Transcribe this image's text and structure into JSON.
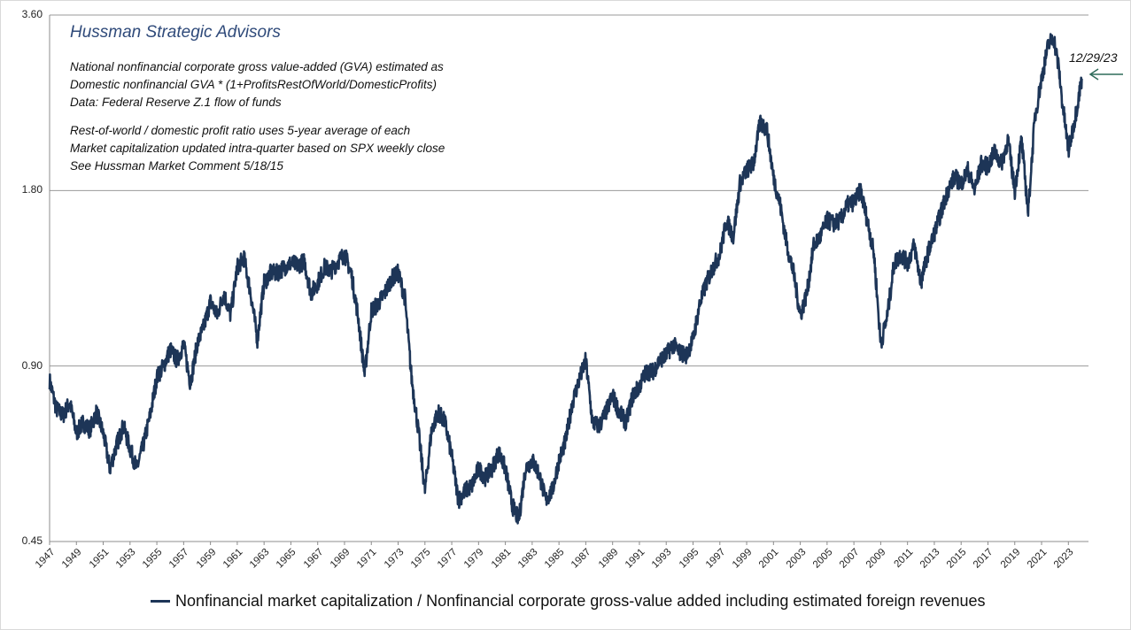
{
  "chart_data": {
    "type": "line",
    "title": "Hussman Strategic Advisors",
    "notes": [
      "National nonfinancial corporate gross value-added (GVA) estimated as",
      "Domestic nonfinancial GVA * (1+ProfitsRestOfWorld/DomesticProfits)",
      "Data: Federal Reserve Z.1 flow of funds",
      "Rest-of-world / domestic profit ratio uses 5-year average of each",
      "Market capitalization updated intra-quarter based on SPX weekly close",
      "See Hussman Market Comment 5/18/15"
    ],
    "end_label": "12/29/23",
    "y_scale": "log",
    "ylim": [
      0.45,
      3.6
    ],
    "y_ticks": [
      "3.60",
      "1.80",
      "0.90",
      "0.45"
    ],
    "y_tick_values": [
      3.6,
      1.8,
      0.9,
      0.45
    ],
    "xlim": [
      1947,
      2024.5
    ],
    "x_ticks": [
      "1947",
      "1949",
      "1951",
      "1953",
      "1955",
      "1957",
      "1959",
      "1961",
      "1963",
      "1965",
      "1967",
      "1969",
      "1971",
      "1973",
      "1975",
      "1977",
      "1979",
      "1981",
      "1983",
      "1985",
      "1987",
      "1989",
      "1991",
      "1993",
      "1995",
      "1997",
      "1999",
      "2001",
      "2003",
      "2005",
      "2007",
      "2009",
      "2011",
      "2013",
      "2015",
      "2017",
      "2019",
      "2021",
      "2023"
    ],
    "grid": "horizontal",
    "legend_position": "bottom",
    "series": [
      {
        "name": "Nonfinancial market capitalization / Nonfinancial corporate gross-value added including estimated foreign revenues",
        "color": "#1d3557",
        "x": [
          1947.0,
          1947.5,
          1948.0,
          1948.5,
          1949.0,
          1949.5,
          1950.0,
          1950.5,
          1951.0,
          1951.5,
          1952.0,
          1952.5,
          1953.0,
          1953.5,
          1954.0,
          1954.5,
          1955.0,
          1955.5,
          1956.0,
          1956.5,
          1957.0,
          1957.5,
          1958.0,
          1958.5,
          1959.0,
          1959.5,
          1960.0,
          1960.5,
          1961.0,
          1961.5,
          1962.0,
          1962.5,
          1963.0,
          1963.5,
          1964.0,
          1964.5,
          1965.0,
          1965.5,
          1966.0,
          1966.5,
          1967.0,
          1967.5,
          1968.0,
          1968.5,
          1969.0,
          1969.5,
          1970.0,
          1970.5,
          1971.0,
          1971.5,
          1972.0,
          1972.5,
          1973.0,
          1973.5,
          1974.0,
          1974.5,
          1975.0,
          1975.5,
          1976.0,
          1976.5,
          1977.0,
          1977.5,
          1978.0,
          1978.5,
          1979.0,
          1979.5,
          1980.0,
          1980.5,
          1981.0,
          1981.5,
          1982.0,
          1982.5,
          1983.0,
          1983.5,
          1984.0,
          1984.5,
          1985.0,
          1985.5,
          1986.0,
          1986.5,
          1987.0,
          1987.5,
          1988.0,
          1988.5,
          1989.0,
          1989.5,
          1990.0,
          1990.5,
          1991.0,
          1991.5,
          1992.0,
          1992.5,
          1993.0,
          1993.5,
          1994.0,
          1994.5,
          1995.0,
          1995.5,
          1996.0,
          1996.5,
          1997.0,
          1997.5,
          1998.0,
          1998.5,
          1999.0,
          1999.5,
          2000.0,
          2000.5,
          2001.0,
          2001.5,
          2002.0,
          2002.5,
          2003.0,
          2003.5,
          2004.0,
          2004.5,
          2005.0,
          2005.5,
          2006.0,
          2006.5,
          2007.0,
          2007.5,
          2008.0,
          2008.5,
          2009.0,
          2009.5,
          2010.0,
          2010.5,
          2011.0,
          2011.5,
          2012.0,
          2012.5,
          2013.0,
          2013.5,
          2014.0,
          2014.5,
          2015.0,
          2015.5,
          2016.0,
          2016.5,
          2017.0,
          2017.5,
          2018.0,
          2018.5,
          2019.0,
          2019.5,
          2020.0,
          2020.2,
          2020.5,
          2021.0,
          2021.5,
          2021.9,
          2022.3,
          2022.5,
          2022.8,
          2023.0,
          2023.5,
          2024.0
        ],
        "values": [
          0.85,
          0.76,
          0.74,
          0.78,
          0.69,
          0.72,
          0.7,
          0.75,
          0.69,
          0.6,
          0.66,
          0.71,
          0.65,
          0.6,
          0.66,
          0.74,
          0.86,
          0.9,
          0.96,
          0.92,
          0.98,
          0.84,
          0.98,
          1.05,
          1.16,
          1.1,
          1.2,
          1.1,
          1.33,
          1.38,
          1.2,
          1.0,
          1.25,
          1.3,
          1.3,
          1.33,
          1.35,
          1.34,
          1.36,
          1.2,
          1.25,
          1.33,
          1.31,
          1.36,
          1.4,
          1.3,
          1.1,
          0.87,
          1.12,
          1.15,
          1.2,
          1.27,
          1.3,
          1.18,
          0.86,
          0.7,
          0.55,
          0.7,
          0.75,
          0.72,
          0.63,
          0.53,
          0.55,
          0.56,
          0.6,
          0.58,
          0.6,
          0.64,
          0.6,
          0.52,
          0.49,
          0.6,
          0.62,
          0.59,
          0.53,
          0.55,
          0.62,
          0.67,
          0.78,
          0.85,
          0.92,
          0.72,
          0.71,
          0.75,
          0.8,
          0.75,
          0.72,
          0.8,
          0.83,
          0.88,
          0.88,
          0.92,
          0.94,
          0.98,
          0.95,
          0.94,
          1.0,
          1.15,
          1.25,
          1.33,
          1.4,
          1.6,
          1.5,
          1.85,
          1.95,
          2.0,
          2.35,
          2.3,
          1.9,
          1.7,
          1.45,
          1.3,
          1.1,
          1.2,
          1.45,
          1.5,
          1.6,
          1.58,
          1.6,
          1.7,
          1.72,
          1.8,
          1.6,
          1.4,
          0.98,
          1.1,
          1.35,
          1.4,
          1.35,
          1.45,
          1.25,
          1.4,
          1.52,
          1.65,
          1.8,
          1.9,
          1.85,
          1.95,
          1.8,
          2.0,
          1.98,
          2.1,
          2.0,
          2.2,
          1.8,
          2.2,
          1.65,
          1.93,
          2.4,
          2.8,
          3.2,
          3.3,
          2.9,
          2.6,
          2.3,
          2.1,
          2.4,
          2.8
        ]
      }
    ]
  }
}
